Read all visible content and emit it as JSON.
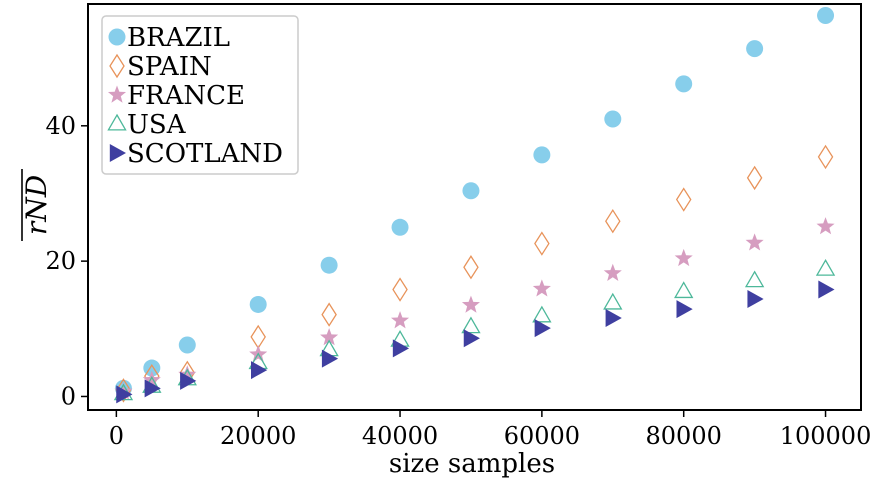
{
  "chart_data": {
    "type": "scatter",
    "title": "",
    "xlabel": "size samples",
    "ylabel": "rND",
    "xlim": [
      -4000,
      105000
    ],
    "ylim": [
      -2,
      58
    ],
    "xticks": [
      0,
      20000,
      40000,
      60000,
      80000,
      100000
    ],
    "xtick_labels": [
      "0",
      "20000",
      "40000",
      "60000",
      "80000",
      "100000"
    ],
    "yticks": [
      0,
      20,
      40
    ],
    "ytick_labels": [
      "0",
      "20",
      "40"
    ],
    "grid": false,
    "legend_position": "top-left",
    "x": [
      1000,
      5000,
      10000,
      20000,
      30000,
      40000,
      50000,
      60000,
      70000,
      80000,
      90000,
      100000
    ],
    "series": [
      {
        "name": "BRAZIL",
        "marker": "circle",
        "color": "#87CEEB",
        "values": [
          1.2,
          4.2,
          7.6,
          13.6,
          19.4,
          25.0,
          30.4,
          35.7,
          41.0,
          46.2,
          51.4,
          56.3
        ]
      },
      {
        "name": "SPAIN",
        "marker": "diamond",
        "color": "#E8935A",
        "values": [
          0.9,
          3.0,
          3.5,
          8.8,
          12.1,
          15.8,
          19.1,
          22.6,
          25.9,
          29.1,
          32.3,
          35.4
        ]
      },
      {
        "name": "FRANCE",
        "marker": "star",
        "color": "#D69DC0",
        "values": [
          0.7,
          2.4,
          3.2,
          6.2,
          8.7,
          11.2,
          13.5,
          15.9,
          18.2,
          20.4,
          22.7,
          25.1
        ]
      },
      {
        "name": "USA",
        "marker": "triangle",
        "color": "#4DB89A",
        "values": [
          0.4,
          1.5,
          2.6,
          5.0,
          6.9,
          8.3,
          10.3,
          11.9,
          13.8,
          15.5,
          17.1,
          18.8
        ]
      },
      {
        "name": "SCOTLAND",
        "marker": "triangle-right",
        "color": "#3F3FA0",
        "values": [
          0.3,
          1.2,
          2.3,
          3.9,
          5.6,
          7.1,
          8.6,
          10.1,
          11.6,
          12.9,
          14.4,
          15.8
        ]
      }
    ]
  }
}
